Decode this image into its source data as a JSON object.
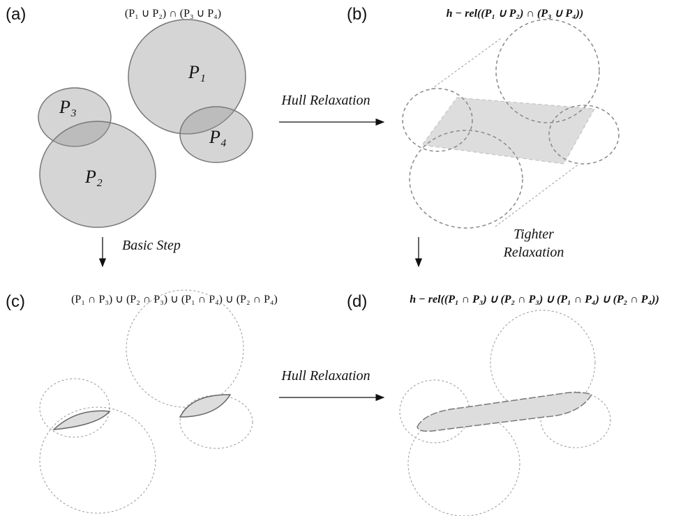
{
  "panels": [
    {
      "label": "(a)",
      "formula": "(P₁ ∪ P₂) ∩ (P₃ ∪ P₄)",
      "regions": [
        "P₁",
        "P₂",
        "P₃",
        "P₄"
      ]
    },
    {
      "label": "(b)",
      "formula": "h − rel((P₁ ∪ P₂) ∩ (P₃ ∪ P₄))"
    },
    {
      "label": "(c)",
      "formula": "(P₁ ∩ P₃) ∪ (P₂ ∩ P₃) ∪ (P₁ ∩ P₄) ∪ (P₂ ∩ P₄)"
    },
    {
      "label": "(d)",
      "formula": "h − rel((P₁ ∩ P₃) ∪ (P₂ ∩ P₃) ∪ (P₁ ∩ P₄) ∪ (P₂ ∩ P₄))"
    }
  ],
  "arrows": {
    "top": "Hull Relaxation",
    "left": "Basic Step",
    "right": [
      "Tighter",
      "Relaxation"
    ],
    "bottom": "Hull Relaxation"
  }
}
